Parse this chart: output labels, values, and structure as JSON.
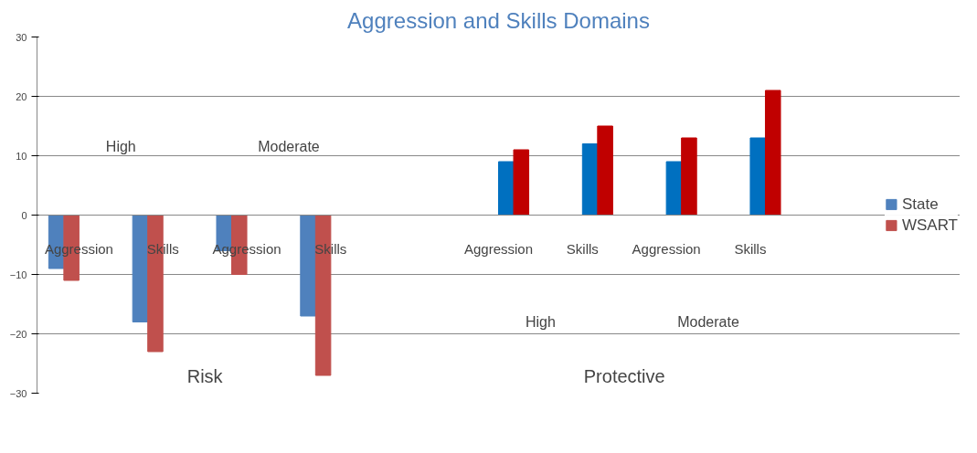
{
  "chart_data": {
    "type": "bar",
    "title": "Aggression and Skills Domains",
    "categories": [
      "Aggression",
      "Skills",
      "Aggression",
      "Skills",
      null,
      "Aggression",
      "Skills",
      "Aggression",
      "Skills",
      null
    ],
    "series": [
      {
        "name": "State",
        "color": "#4f81bd",
        "values": [
          -9,
          -18,
          -6,
          -17,
          null,
          null,
          null,
          null,
          null,
          null
        ]
      },
      {
        "name": "WSART",
        "color": "#c0504d",
        "values": [
          -11,
          -23,
          -10,
          -27,
          null,
          null,
          null,
          null,
          null,
          null
        ]
      },
      {
        "color": "#0070c0",
        "values": [
          null,
          null,
          null,
          null,
          null,
          9,
          12,
          9,
          13,
          null
        ]
      },
      {
        "color": "#c00000",
        "values": [
          null,
          null,
          null,
          null,
          null,
          11,
          15,
          13,
          21,
          null
        ]
      }
    ],
    "ylim": [
      -30,
      30
    ],
    "yticks": [
      -30,
      -20,
      -10,
      0,
      10,
      20,
      30
    ],
    "grid": "y",
    "legend": "right",
    "annotations": [
      "High",
      "Moderate",
      "High",
      "Moderate",
      "Risk",
      "Protective"
    ]
  }
}
